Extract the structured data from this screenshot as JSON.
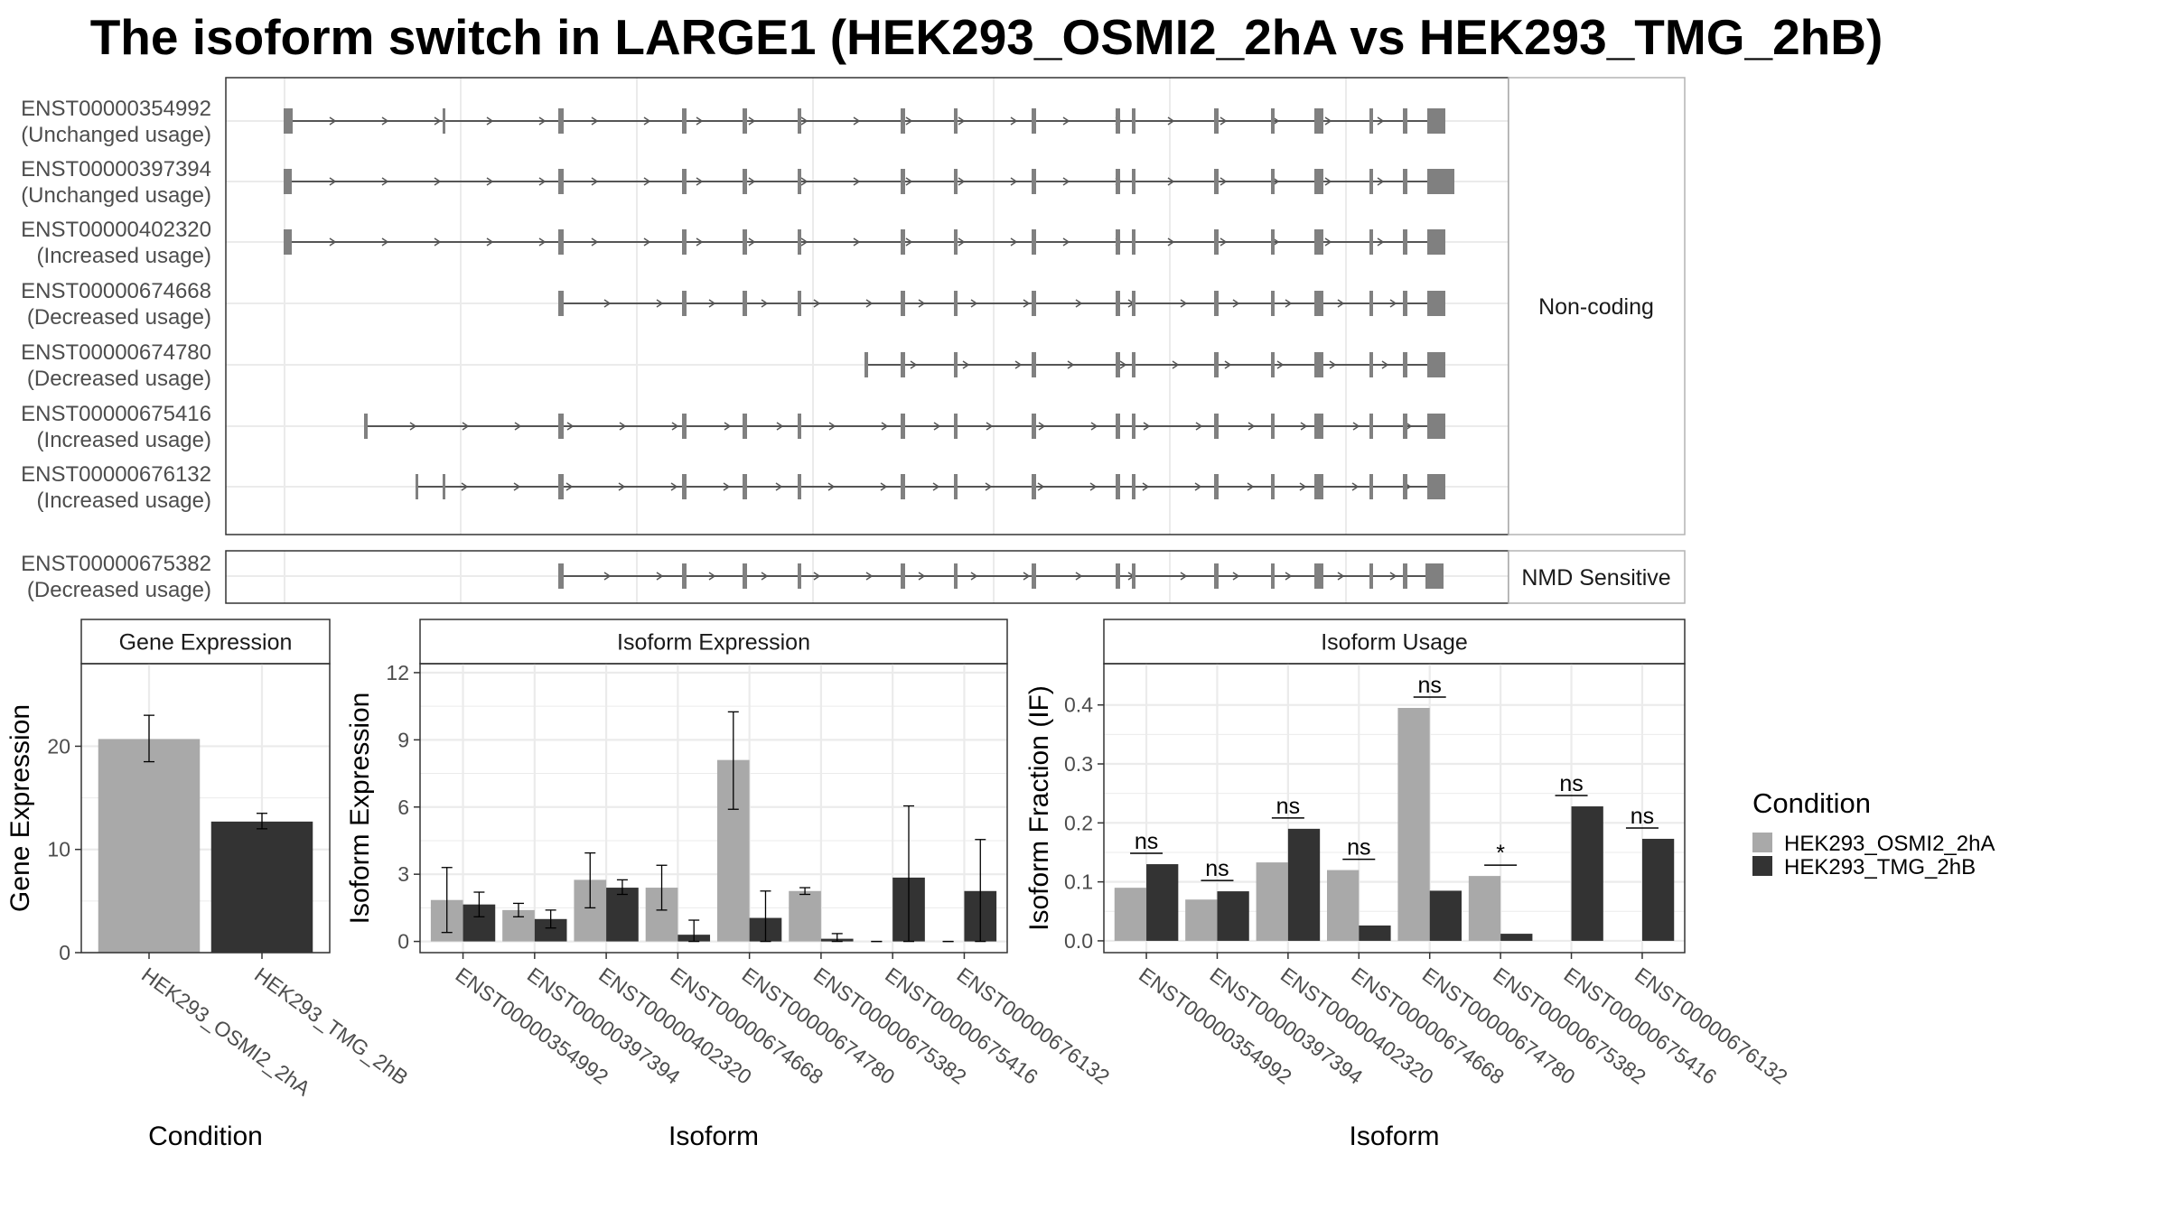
{
  "title": "The isoform switch in LARGE1 (HEK293_OSMI2_2hA vs HEK293_TMG_2hB)",
  "colors": {
    "cond1": "#a9a9a9",
    "cond2": "#333333",
    "exon": "#808080",
    "intron": "#555555",
    "grid": "#ebebeb",
    "panel_border": "#333333"
  },
  "structure": {
    "groups": [
      {
        "label": "Non-coding",
        "isoforms": [
          {
            "id": "ENST00000354992",
            "usage": "(Unchanged usage)"
          },
          {
            "id": "ENST00000397394",
            "usage": "(Unchanged usage)"
          },
          {
            "id": "ENST00000402320",
            "usage": "(Increased usage)"
          },
          {
            "id": "ENST00000674668",
            "usage": "(Decreased usage)"
          },
          {
            "id": "ENST00000674780",
            "usage": "(Decreased usage)"
          },
          {
            "id": "ENST00000675416",
            "usage": "(Increased usage)"
          },
          {
            "id": "ENST00000676132",
            "usage": "(Increased usage)"
          }
        ]
      },
      {
        "label": "NMD Sensitive",
        "isoforms": [
          {
            "id": "ENST00000675382",
            "usage": "(Decreased usage)"
          }
        ]
      }
    ]
  },
  "chart_data": [
    {
      "type": "bar",
      "panel": "Gene Expression",
      "xlabel": "Condition",
      "ylabel": "Gene Expression",
      "categories": [
        "HEK293_OSMI2_2hA",
        "HEK293_TMG_2hB"
      ],
      "values": [
        20.7,
        12.7
      ],
      "error_low": [
        18.5,
        12.0
      ],
      "error_high": [
        23.0,
        13.5
      ],
      "ylim": [
        0,
        28
      ],
      "yticks": [
        0,
        10,
        20
      ]
    },
    {
      "type": "bar",
      "panel": "Isoform Expression",
      "xlabel": "Isoform",
      "ylabel": "Isoform Expression",
      "categories": [
        "ENST00000354992",
        "ENST00000397394",
        "ENST00000402320",
        "ENST00000674668",
        "ENST00000674780",
        "ENST00000675382",
        "ENST00000675416",
        "ENST00000676132"
      ],
      "series": [
        {
          "name": "HEK293_OSMI2_2hA",
          "values": [
            1.85,
            1.4,
            2.75,
            2.4,
            8.1,
            2.25,
            0.0,
            0.0
          ],
          "error_low": [
            0.4,
            1.1,
            1.5,
            1.4,
            5.9,
            2.1,
            0.0,
            0.0
          ],
          "error_high": [
            3.3,
            1.7,
            3.95,
            3.4,
            10.25,
            2.4,
            0.0,
            0.0
          ]
        },
        {
          "name": "HEK293_TMG_2hB",
          "values": [
            1.65,
            1.0,
            2.4,
            0.3,
            1.05,
            0.12,
            2.85,
            2.25
          ],
          "error_low": [
            1.1,
            0.6,
            2.1,
            0.0,
            0.0,
            0.0,
            0.0,
            0.0
          ],
          "error_high": [
            2.2,
            1.4,
            2.75,
            0.95,
            2.25,
            0.35,
            6.05,
            4.55
          ]
        }
      ],
      "ylim": [
        -0.5,
        12.4
      ],
      "yticks": [
        0,
        3,
        6,
        9,
        12
      ]
    },
    {
      "type": "bar",
      "panel": "Isoform Usage",
      "xlabel": "Isoform",
      "ylabel": "Isoform Fraction (IF)",
      "categories": [
        "ENST00000354992",
        "ENST00000397394",
        "ENST00000402320",
        "ENST00000674668",
        "ENST00000674780",
        "ENST00000675382",
        "ENST00000675416",
        "ENST00000676132"
      ],
      "series": [
        {
          "name": "HEK293_OSMI2_2hA",
          "values": [
            0.09,
            0.07,
            0.133,
            0.12,
            0.395,
            0.11,
            0.0,
            0.0
          ]
        },
        {
          "name": "HEK293_TMG_2hB",
          "values": [
            0.13,
            0.084,
            0.19,
            0.026,
            0.085,
            0.012,
            0.228,
            0.173
          ]
        }
      ],
      "significance": [
        "ns",
        "ns",
        "ns",
        "ns",
        "ns",
        "*",
        "ns",
        "ns"
      ],
      "ylim": [
        -0.02,
        0.47
      ],
      "yticks": [
        0.0,
        0.1,
        0.2,
        0.3,
        0.4
      ],
      "ytick_labels": [
        "0.0",
        "0.1",
        "0.2",
        "0.3",
        "0.4"
      ]
    }
  ],
  "legend": {
    "title": "Condition",
    "items": [
      "HEK293_OSMI2_2hA",
      "HEK293_TMG_2hB"
    ],
    "position": "right"
  }
}
